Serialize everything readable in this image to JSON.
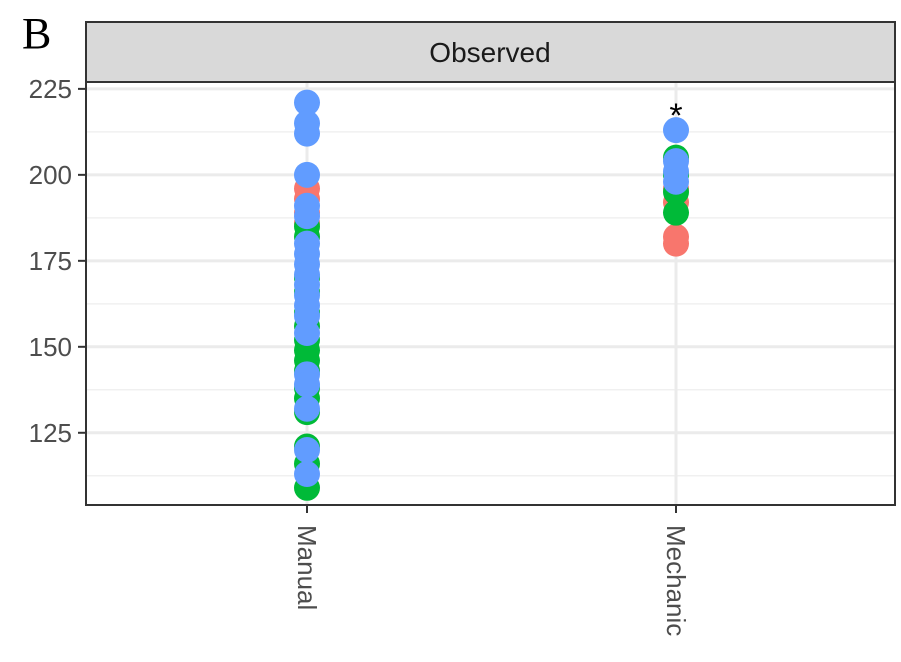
{
  "panel_label": "B",
  "chart_data": {
    "type": "scatter",
    "title": "",
    "facet_label": "Observed",
    "xlabel": "",
    "ylabel": "",
    "categories": [
      "Manual",
      "Mechanic"
    ],
    "ylim": [
      104,
      227
    ],
    "yticks": [
      125,
      150,
      175,
      200,
      225
    ],
    "grid": true,
    "legend": "none",
    "annotations": [
      {
        "category": "Mechanic",
        "y": 218,
        "text": "*"
      }
    ],
    "series": [
      {
        "color": "#F8766D",
        "points": [
          {
            "x": "Manual",
            "y": 196
          },
          {
            "x": "Manual",
            "y": 193
          },
          {
            "x": "Manual",
            "y": 189
          },
          {
            "x": "Manual",
            "y": 186
          },
          {
            "x": "Mechanic",
            "y": 196
          },
          {
            "x": "Mechanic",
            "y": 192
          },
          {
            "x": "Mechanic",
            "y": 182
          },
          {
            "x": "Mechanic",
            "y": 180
          }
        ]
      },
      {
        "color": "#00BA38",
        "points": [
          {
            "x": "Manual",
            "y": 185
          },
          {
            "x": "Manual",
            "y": 182
          },
          {
            "x": "Manual",
            "y": 170
          },
          {
            "x": "Manual",
            "y": 166
          },
          {
            "x": "Manual",
            "y": 160
          },
          {
            "x": "Manual",
            "y": 156
          },
          {
            "x": "Manual",
            "y": 152
          },
          {
            "x": "Manual",
            "y": 149
          },
          {
            "x": "Manual",
            "y": 146
          },
          {
            "x": "Manual",
            "y": 143
          },
          {
            "x": "Manual",
            "y": 138
          },
          {
            "x": "Manual",
            "y": 135
          },
          {
            "x": "Manual",
            "y": 131
          },
          {
            "x": "Manual",
            "y": 121
          },
          {
            "x": "Manual",
            "y": 116
          },
          {
            "x": "Manual",
            "y": 109
          },
          {
            "x": "Mechanic",
            "y": 205
          },
          {
            "x": "Mechanic",
            "y": 200
          },
          {
            "x": "Mechanic",
            "y": 195
          },
          {
            "x": "Mechanic",
            "y": 189
          }
        ]
      },
      {
        "color": "#619CFF",
        "points": [
          {
            "x": "Manual",
            "y": 221
          },
          {
            "x": "Manual",
            "y": 215
          },
          {
            "x": "Manual",
            "y": 212
          },
          {
            "x": "Manual",
            "y": 200
          },
          {
            "x": "Manual",
            "y": 191
          },
          {
            "x": "Manual",
            "y": 188
          },
          {
            "x": "Manual",
            "y": 180
          },
          {
            "x": "Manual",
            "y": 177
          },
          {
            "x": "Manual",
            "y": 174
          },
          {
            "x": "Manual",
            "y": 171
          },
          {
            "x": "Manual",
            "y": 168
          },
          {
            "x": "Manual",
            "y": 165
          },
          {
            "x": "Manual",
            "y": 162
          },
          {
            "x": "Manual",
            "y": 159
          },
          {
            "x": "Manual",
            "y": 154
          },
          {
            "x": "Manual",
            "y": 142
          },
          {
            "x": "Manual",
            "y": 139
          },
          {
            "x": "Manual",
            "y": 132
          },
          {
            "x": "Manual",
            "y": 120
          },
          {
            "x": "Manual",
            "y": 113
          },
          {
            "x": "Mechanic",
            "y": 213
          },
          {
            "x": "Mechanic",
            "y": 204
          },
          {
            "x": "Mechanic",
            "y": 201
          },
          {
            "x": "Mechanic",
            "y": 198
          }
        ]
      }
    ]
  }
}
